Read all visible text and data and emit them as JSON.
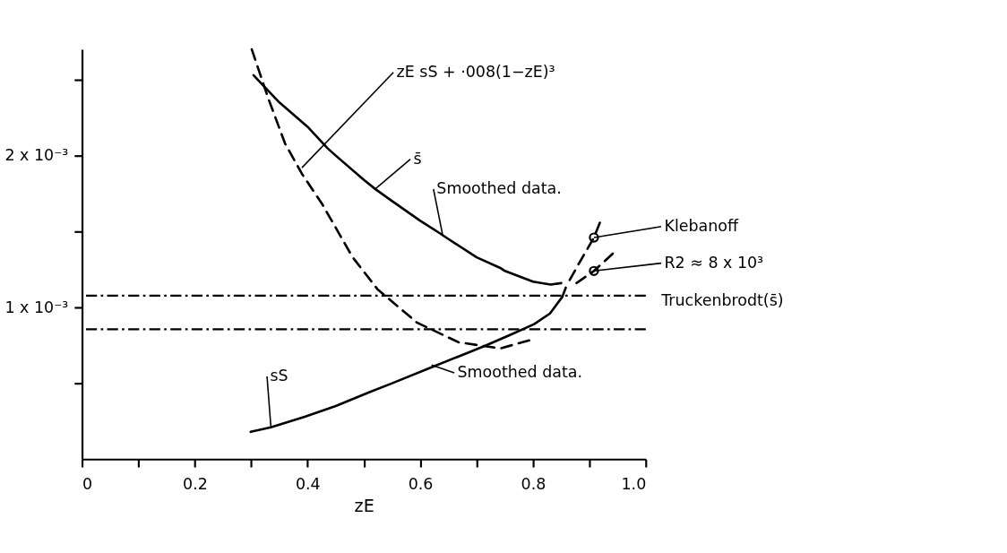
{
  "chart_data": {
    "type": "line",
    "xlabel": "zE",
    "xlim": [
      0,
      1.0
    ],
    "ylim": [
      0,
      0.0027
    ],
    "xticks": [
      0,
      {
        "value": 0.1,
        "label": null
      },
      0.2,
      {
        "value": 0.3,
        "label": null
      },
      0.4,
      {
        "value": 0.5,
        "label": null
      },
      0.6,
      {
        "value": 0.7,
        "label": null
      },
      0.8,
      {
        "value": 0.9,
        "label": null
      },
      {
        "value": 1.0,
        "label": "1.0"
      }
    ],
    "yticks": [
      {
        "value": 0.0005,
        "label": null
      },
      {
        "value": 0.001,
        "label": "1 x 10⁻³"
      },
      {
        "value": 0.0015,
        "label": null
      },
      {
        "value": 0.002,
        "label": "2 x 10⁻³"
      },
      {
        "value": 0.0025,
        "label": null
      }
    ],
    "grid": false,
    "series": [
      {
        "type": "line",
        "line_style": "solid",
        "color": "#000000",
        "x": [
          0.304,
          0.35,
          0.4,
          0.435,
          0.45,
          0.5,
          0.52,
          0.55,
          0.6,
          0.634,
          0.65,
          0.7,
          0.742,
          0.75,
          0.8,
          0.831,
          0.85
        ],
        "values": [
          0.00253,
          0.00235,
          0.00219,
          0.00205,
          0.002,
          0.00184,
          0.00178,
          0.0017,
          0.00157,
          0.00149,
          0.00145,
          0.00133,
          0.00126,
          0.00124,
          0.00117,
          0.00115,
          0.00116
        ]
      },
      {
        "type": "line",
        "line_style": "solid",
        "color": "#000000",
        "x": [
          0.299,
          0.335,
          0.395,
          0.45,
          0.509,
          0.55,
          0.623,
          0.67,
          0.717,
          0.76,
          0.802,
          0.83,
          0.852,
          0.858
        ],
        "values": [
          0.00018,
          0.00021,
          0.00028,
          0.00035,
          0.00044,
          0.0005,
          0.00061,
          0.00068,
          0.00075,
          0.00082,
          0.00089,
          0.00096,
          0.00107,
          0.00113
        ]
      },
      {
        "type": "line",
        "line_style": "dashed",
        "color": "#000000",
        "x": [
          0.301,
          0.33,
          0.36,
          0.39,
          0.426,
          0.48,
          0.524,
          0.594,
          0.668,
          0.742,
          0.8
        ],
        "values": [
          0.0027,
          0.00238,
          0.00208,
          0.00188,
          0.00168,
          0.00133,
          0.00112,
          0.0009,
          0.00077,
          0.00073,
          0.00079
        ]
      },
      {
        "type": "line",
        "line_style": "dashed",
        "color": "#000000",
        "x": [
          0.865,
          0.88,
          0.908,
          0.922
        ],
        "values": [
          0.00118,
          0.00128,
          0.00146,
          0.00159
        ]
      },
      {
        "type": "line",
        "line_style": "dashed",
        "color": "#000000",
        "x": [
          0.877,
          0.908,
          0.946
        ],
        "values": [
          0.00116,
          0.00124,
          0.00137
        ]
      },
      {
        "type": "scatter",
        "marker": "circle",
        "color": "#000000",
        "x": [
          0.908,
          0.908
        ],
        "values": [
          0.00146,
          0.00124
        ]
      }
    ],
    "ref_lines": [
      {
        "axis": "y",
        "value": 0.001077,
        "label": "Truckenbrodt(s̄)",
        "color": "#000000",
        "line_style": "dashdot"
      },
      {
        "axis": "y",
        "value": 0.000856,
        "label": null,
        "color": "#000000",
        "line_style": "dashdot"
      }
    ],
    "annotations": [
      {
        "text": "zE sS + ·008(1−zE)³",
        "x": 0.39,
        "y": 0.00192
      },
      {
        "text": "s̄",
        "x": 0.52,
        "y": 0.00178
      },
      {
        "text": "Smoothed data.",
        "x": 0.64,
        "y": 0.00147
      },
      {
        "text": "sS",
        "x": 0.335,
        "y": 0.00021
      },
      {
        "text": "Smoothed data.",
        "x": 0.62,
        "y": 0.00062
      },
      {
        "text": "Klebanoff",
        "x": 0.908,
        "y": 0.00146
      },
      {
        "text": "R2 ≈ 8 x 10³",
        "x": 0.908,
        "y": 0.00124
      }
    ]
  }
}
